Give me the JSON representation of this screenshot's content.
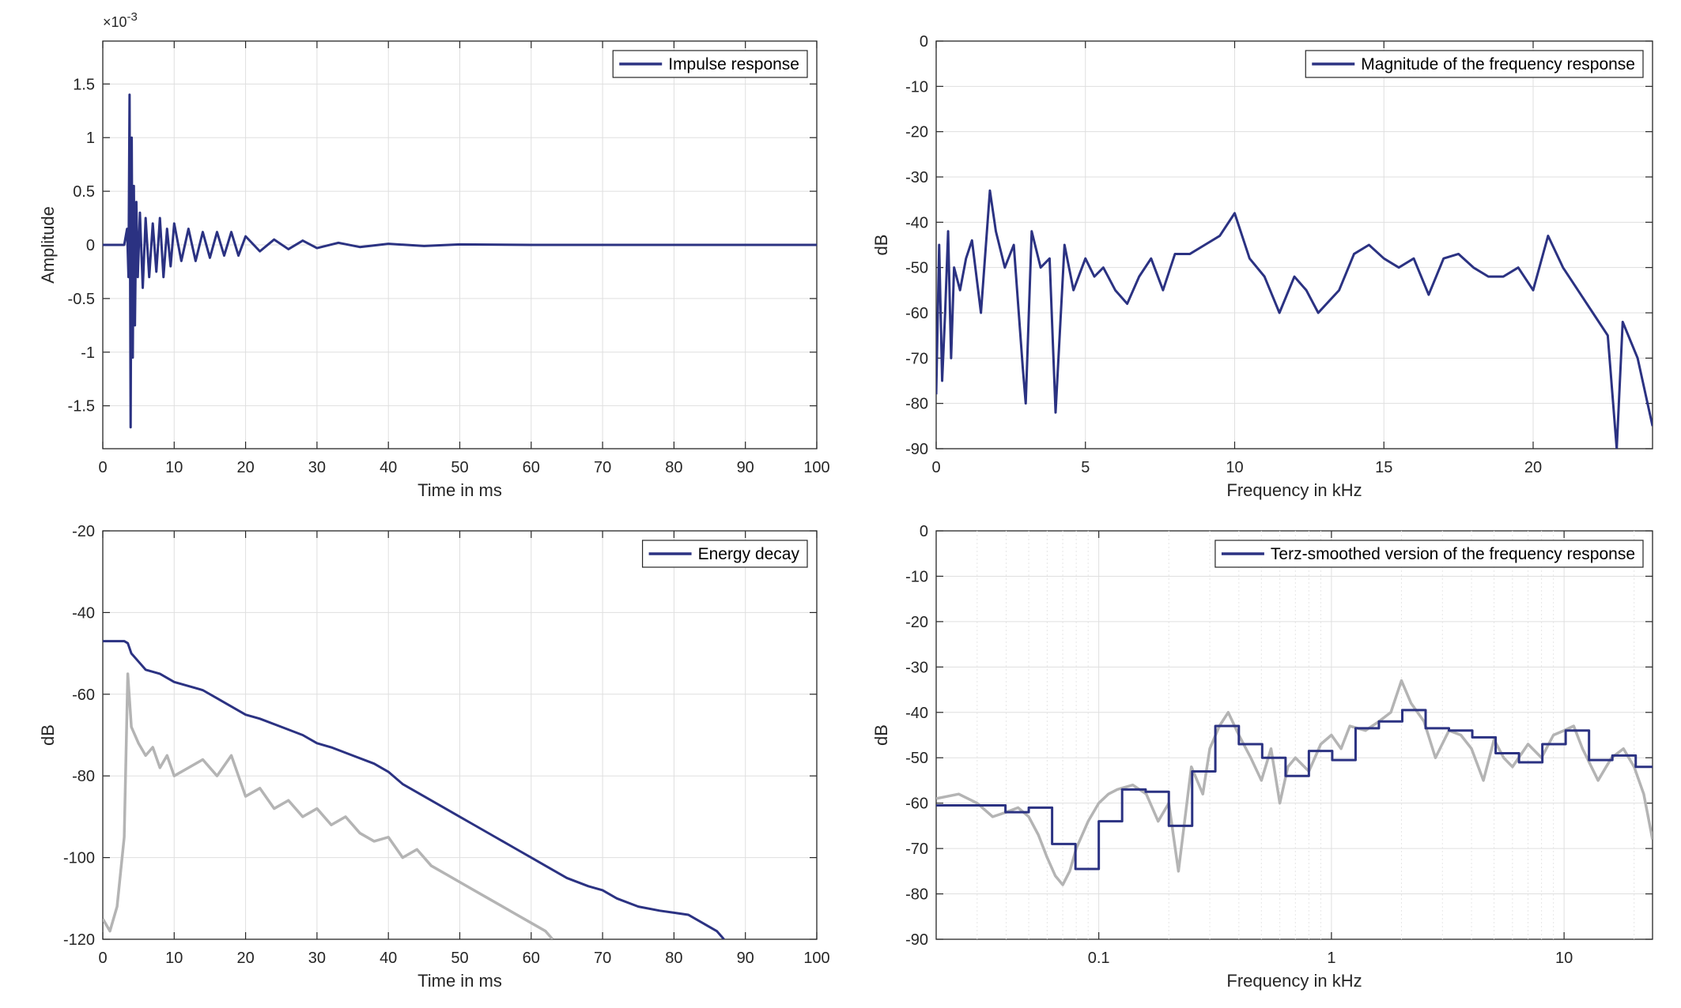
{
  "colors": {
    "primary": "#2b3282",
    "secondary": "#b4b4b4"
  },
  "chart_data": [
    {
      "type": "line",
      "legend": [
        "Impulse response"
      ],
      "legend_placement": "top-right",
      "xlabel": "Time in ms",
      "ylabel": "Amplitude",
      "xlim": [
        0,
        100
      ],
      "ylim": [
        -1.9,
        1.9
      ],
      "x_ticks": [
        0,
        10,
        20,
        30,
        40,
        50,
        60,
        70,
        80,
        90,
        100
      ],
      "x_tick_labels": [
        "0",
        "10",
        "20",
        "30",
        "40",
        "50",
        "60",
        "70",
        "80",
        "90",
        "100"
      ],
      "y_ticks": [
        -1.5,
        -1,
        -0.5,
        0,
        0.5,
        1,
        1.5
      ],
      "y_tick_labels": [
        "-1.5",
        "-1",
        "-0.5",
        "0",
        "0.5",
        "1",
        "1.5"
      ],
      "y_exponent_label": "×10",
      "y_exponent_power": "-3",
      "grid": true,
      "series": [
        {
          "color": "#2b3282",
          "x": [
            0,
            3.0,
            3.4,
            3.6,
            3.75,
            3.9,
            4.05,
            4.2,
            4.35,
            4.5,
            4.7,
            4.9,
            5.2,
            5.6,
            6.0,
            6.5,
            7.0,
            7.5,
            8.0,
            8.5,
            9.0,
            9.5,
            10,
            11,
            12,
            13,
            14,
            15,
            16,
            17,
            18,
            19,
            20,
            22,
            24,
            26,
            28,
            30,
            33,
            36,
            40,
            45,
            50,
            60,
            70,
            80,
            90,
            100
          ],
          "y": [
            0,
            0,
            0.15,
            -0.3,
            1.4,
            -1.7,
            1.0,
            -1.05,
            0.55,
            -0.75,
            0.4,
            -0.3,
            0.3,
            -0.4,
            0.25,
            -0.3,
            0.2,
            -0.25,
            0.25,
            -0.3,
            0.15,
            -0.2,
            0.2,
            -0.15,
            0.15,
            -0.15,
            0.12,
            -0.12,
            0.12,
            -0.1,
            0.12,
            -0.1,
            0.08,
            -0.06,
            0.05,
            -0.04,
            0.04,
            -0.03,
            0.02,
            -0.02,
            0.01,
            -0.01,
            0.005,
            0,
            0,
            0,
            0,
            0
          ]
        }
      ]
    },
    {
      "type": "line",
      "legend": [
        "Magnitude of the frequency response"
      ],
      "legend_placement": "top-right",
      "xlabel": "Frequency in kHz",
      "ylabel": "dB",
      "xlim": [
        0,
        24
      ],
      "ylim": [
        -90,
        0
      ],
      "x_ticks": [
        0,
        5,
        10,
        15,
        20
      ],
      "x_tick_labels": [
        "0",
        "5",
        "10",
        "15",
        "20"
      ],
      "y_ticks": [
        0,
        -10,
        -20,
        -30,
        -40,
        -50,
        -60,
        -70,
        -80,
        -90
      ],
      "y_tick_labels": [
        "0",
        "-10",
        "-20",
        "-30",
        "-40",
        "-50",
        "-60",
        "-70",
        "-80",
        "-90"
      ],
      "grid": true,
      "series": [
        {
          "color": "#2b3282",
          "x": [
            0,
            0.1,
            0.2,
            0.3,
            0.4,
            0.5,
            0.6,
            0.8,
            1.0,
            1.2,
            1.5,
            1.8,
            2.0,
            2.3,
            2.6,
            2.9,
            3.0,
            3.2,
            3.5,
            3.8,
            4.0,
            4.3,
            4.6,
            5.0,
            5.3,
            5.6,
            6.0,
            6.4,
            6.8,
            7.2,
            7.6,
            8.0,
            8.5,
            9.0,
            9.5,
            10.0,
            10.5,
            11.0,
            11.5,
            12.0,
            12.4,
            12.8,
            13.5,
            14.0,
            14.5,
            15.0,
            15.5,
            16.0,
            16.5,
            17.0,
            17.5,
            18.0,
            18.5,
            19.0,
            19.5,
            20.0,
            20.5,
            21.0,
            21.5,
            22.0,
            22.5,
            22.8,
            23.0,
            23.5,
            24.0
          ],
          "y": [
            -78,
            -45,
            -75,
            -60,
            -42,
            -70,
            -50,
            -55,
            -48,
            -44,
            -60,
            -33,
            -42,
            -50,
            -45,
            -72,
            -80,
            -42,
            -50,
            -48,
            -82,
            -45,
            -55,
            -48,
            -52,
            -50,
            -55,
            -58,
            -52,
            -48,
            -55,
            -47,
            -47,
            -45,
            -43,
            -38,
            -48,
            -52,
            -60,
            -52,
            -55,
            -60,
            -55,
            -47,
            -45,
            -48,
            -50,
            -48,
            -56,
            -48,
            -47,
            -50,
            -52,
            -52,
            -50,
            -55,
            -43,
            -50,
            -55,
            -60,
            -65,
            -90,
            -62,
            -70,
            -85
          ]
        }
      ]
    },
    {
      "type": "line",
      "legend": [
        "Energy decay"
      ],
      "legend_placement": "top-right",
      "xlabel": "Time in ms",
      "ylabel": "dB",
      "xlim": [
        0,
        100
      ],
      "ylim": [
        -120,
        -20
      ],
      "x_ticks": [
        0,
        10,
        20,
        30,
        40,
        50,
        60,
        70,
        80,
        90,
        100
      ],
      "x_tick_labels": [
        "0",
        "10",
        "20",
        "30",
        "40",
        "50",
        "60",
        "70",
        "80",
        "90",
        "100"
      ],
      "y_ticks": [
        -20,
        -40,
        -60,
        -80,
        -100,
        -120
      ],
      "y_tick_labels": [
        "-20",
        "-40",
        "-60",
        "-80",
        "-100",
        "-120"
      ],
      "grid": true,
      "series": [
        {
          "color": "#b4b4b4",
          "x": [
            0,
            1,
            2,
            3,
            3.5,
            4,
            5,
            6,
            7,
            8,
            9,
            10,
            12,
            14,
            16,
            18,
            20,
            22,
            24,
            26,
            28,
            30,
            32,
            34,
            36,
            38,
            40,
            42,
            44,
            46,
            48,
            50,
            52,
            54,
            56,
            58,
            60,
            62,
            63
          ],
          "y": [
            -115,
            -118,
            -112,
            -95,
            -55,
            -68,
            -72,
            -75,
            -73,
            -78,
            -75,
            -80,
            -78,
            -76,
            -80,
            -75,
            -85,
            -83,
            -88,
            -86,
            -90,
            -88,
            -92,
            -90,
            -94,
            -96,
            -95,
            -100,
            -98,
            -102,
            -104,
            -106,
            -108,
            -110,
            -112,
            -114,
            -116,
            -118,
            -120
          ]
        },
        {
          "color": "#2b3282",
          "x": [
            0,
            2,
            3,
            3.5,
            4,
            5,
            6,
            8,
            10,
            12,
            14,
            16,
            18,
            20,
            22,
            25,
            28,
            30,
            32,
            35,
            38,
            40,
            42,
            45,
            48,
            50,
            52,
            55,
            58,
            60,
            62,
            65,
            68,
            70,
            72,
            75,
            78,
            80,
            82,
            84,
            86,
            87
          ],
          "y": [
            -47,
            -47,
            -47,
            -47.5,
            -50,
            -52,
            -54,
            -55,
            -57,
            -58,
            -59,
            -61,
            -63,
            -65,
            -66,
            -68,
            -70,
            -72,
            -73,
            -75,
            -77,
            -79,
            -82,
            -85,
            -88,
            -90,
            -92,
            -95,
            -98,
            -100,
            -102,
            -105,
            -107,
            -108,
            -110,
            -112,
            -113,
            -113.5,
            -114,
            -116,
            -118,
            -120
          ]
        }
      ]
    },
    {
      "type": "line",
      "legend": [
        "Terz-smoothed version of the frequency response"
      ],
      "legend_placement": "top-right",
      "xlabel": "Frequency in kHz",
      "ylabel": "dB",
      "x_scale": "log",
      "xlim": [
        0.02,
        24
      ],
      "ylim": [
        -90,
        0
      ],
      "x_ticks": [
        0.1,
        1,
        10
      ],
      "x_tick_labels": [
        "0.1",
        "1",
        "10"
      ],
      "y_ticks": [
        0,
        -10,
        -20,
        -30,
        -40,
        -50,
        -60,
        -70,
        -80,
        -90
      ],
      "y_tick_labels": [
        "0",
        "-10",
        "-20",
        "-30",
        "-40",
        "-50",
        "-60",
        "-70",
        "-80",
        "-90"
      ],
      "grid": true,
      "series": [
        {
          "color": "#b4b4b4",
          "x": [
            0.02,
            0.025,
            0.03,
            0.035,
            0.04,
            0.045,
            0.05,
            0.055,
            0.06,
            0.065,
            0.07,
            0.075,
            0.08,
            0.09,
            0.1,
            0.11,
            0.12,
            0.14,
            0.16,
            0.18,
            0.2,
            0.22,
            0.25,
            0.28,
            0.3,
            0.33,
            0.36,
            0.4,
            0.45,
            0.5,
            0.55,
            0.6,
            0.65,
            0.7,
            0.8,
            0.9,
            1.0,
            1.1,
            1.2,
            1.4,
            1.6,
            1.8,
            2.0,
            2.2,
            2.5,
            2.8,
            3.2,
            3.6,
            4.0,
            4.5,
            5.0,
            5.5,
            6.0,
            7.0,
            8.0,
            9.0,
            10.0,
            11.0,
            12.0,
            14.0,
            16.0,
            18.0,
            20.0,
            22.0,
            24.0
          ],
          "y": [
            -59,
            -58,
            -60,
            -63,
            -62,
            -61,
            -63,
            -67,
            -72,
            -76,
            -78,
            -75,
            -70,
            -64,
            -60,
            -58,
            -57,
            -56,
            -58,
            -64,
            -60,
            -75,
            -52,
            -58,
            -48,
            -43,
            -40,
            -45,
            -50,
            -55,
            -48,
            -60,
            -52,
            -50,
            -53,
            -47,
            -45,
            -48,
            -43,
            -44,
            -42,
            -40,
            -33,
            -38,
            -42,
            -50,
            -44,
            -45,
            -48,
            -55,
            -46,
            -50,
            -52,
            -47,
            -50,
            -45,
            -44,
            -43,
            -48,
            -55,
            -50,
            -48,
            -52,
            -58,
            -68
          ]
        },
        {
          "color": "#2b3282",
          "step": true,
          "x": [
            0.02,
            0.0397,
            0.05,
            0.063,
            0.0794,
            0.1,
            0.126,
            0.159,
            0.2,
            0.252,
            0.317,
            0.4,
            0.504,
            0.635,
            0.8,
            1.008,
            1.27,
            1.6,
            2.016,
            2.54,
            3.2,
            4.032,
            5.08,
            6.4,
            8.064,
            10.16,
            12.8,
            16.13,
            20.32,
            24.0
          ],
          "y": [
            -60.5,
            -62,
            -61,
            -69,
            -74.5,
            -64,
            -57,
            -57.5,
            -65,
            -53,
            -43,
            -47,
            -50,
            -54,
            -48.5,
            -50.5,
            -43.5,
            -42,
            -39.5,
            -43.5,
            -44,
            -45.5,
            -49,
            -51,
            -47,
            -44,
            -50.5,
            -49.5,
            -52,
            -52
          ]
        }
      ]
    }
  ]
}
